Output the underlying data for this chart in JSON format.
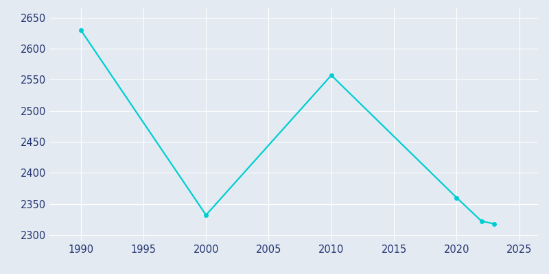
{
  "years": [
    1990,
    2000,
    2010,
    2020,
    2022,
    2023
  ],
  "population": [
    2630,
    2332,
    2557,
    2360,
    2322,
    2318
  ],
  "line_color": "#00CED1",
  "marker_color": "#00CED1",
  "background_color": "#E3EAF2",
  "plot_bg_color": "#E3EAF2",
  "xlabel": "",
  "ylabel": "",
  "xlim": [
    1987.5,
    2026.5
  ],
  "ylim": [
    2290,
    2665
  ],
  "yticks": [
    2300,
    2350,
    2400,
    2450,
    2500,
    2550,
    2600,
    2650
  ],
  "xticks": [
    1990,
    1995,
    2000,
    2005,
    2010,
    2015,
    2020,
    2025
  ],
  "line_width": 1.6,
  "marker_size": 4,
  "grid_color": "#FFFFFF",
  "grid_alpha": 1.0,
  "tick_label_color": "#253570",
  "tick_fontsize": 10.5
}
